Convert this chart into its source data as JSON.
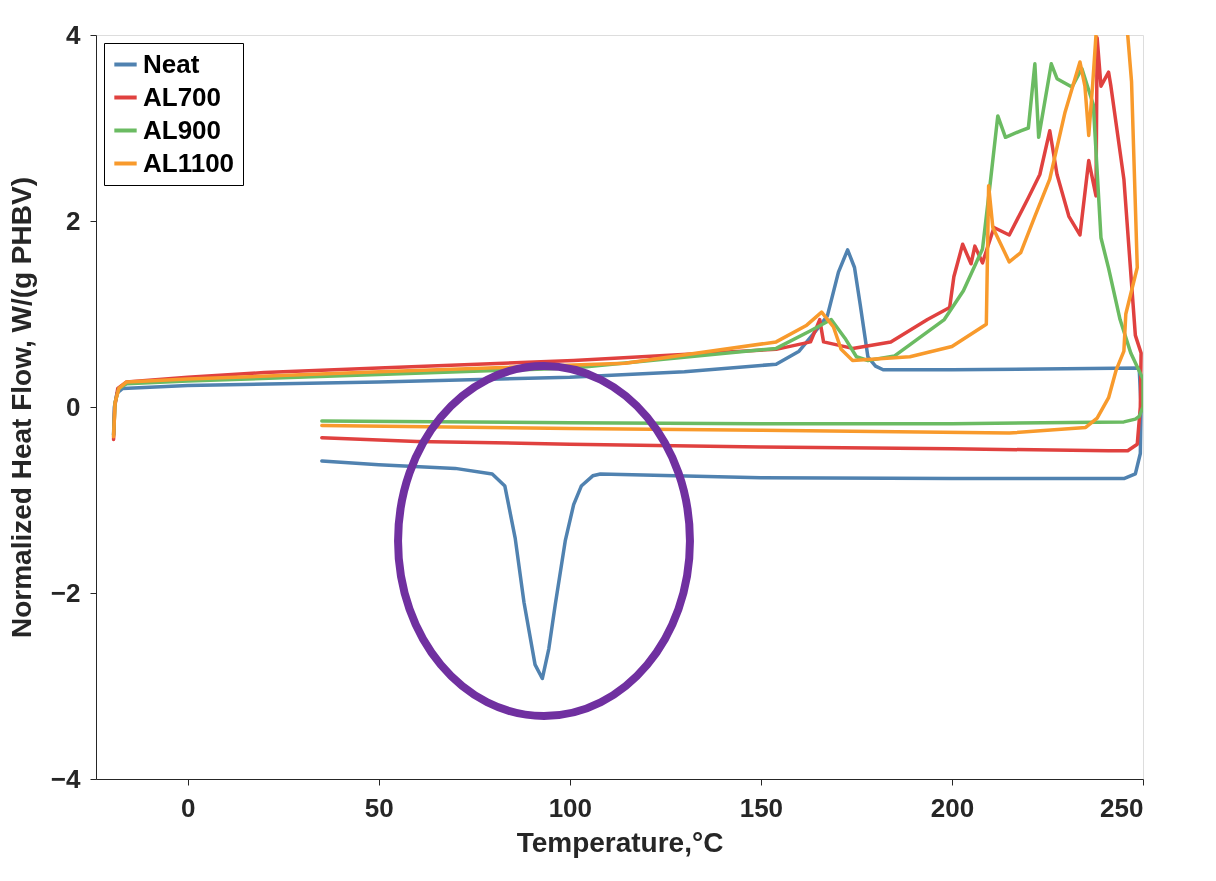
{
  "chart_data": {
    "type": "line",
    "xlabel": "Temperature,°C",
    "ylabel": "Normalized Heat Flow, W/(g PHBV)",
    "xlim": [
      -24,
      250
    ],
    "xticks": [
      0,
      50,
      100,
      150,
      200,
      250
    ],
    "ylim": [
      -4,
      4
    ],
    "yticks": [
      -4,
      -2,
      0,
      2,
      4
    ],
    "grid": false,
    "legend": "top left",
    "marker": "none",
    "line_style": "solid",
    "series": [
      {
        "name": "Neat",
        "color": "#5082b0",
        "x": [
          -19.4,
          -19.2,
          -18.5,
          -17,
          0,
          50,
          100,
          130,
          154,
          160,
          164,
          167.4,
          170.3,
          172.7,
          174.5,
          176,
          178,
          180,
          182,
          200,
          249,
          249.5,
          249.3,
          248,
          245,
          200,
          150,
          108,
          106,
          103,
          101,
          98.8,
          96.2,
          94.5,
          92.8,
          90.9,
          88,
          85.7,
          83,
          79.7,
          70,
          50,
          35.1
        ],
        "values": [
          -0.3,
          0.0,
          0.15,
          0.2,
          0.23,
          0.27,
          0.32,
          0.38,
          0.46,
          0.6,
          0.8,
          0.98,
          1.45,
          1.69,
          1.5,
          1.1,
          0.54,
          0.44,
          0.4,
          0.4,
          0.42,
          0.0,
          -0.5,
          -0.72,
          -0.77,
          -0.77,
          -0.76,
          -0.72,
          -0.74,
          -0.85,
          -1.05,
          -1.44,
          -2.12,
          -2.6,
          -2.92,
          -2.77,
          -2.1,
          -1.41,
          -0.85,
          -0.72,
          -0.66,
          -0.62,
          -0.58
        ]
      },
      {
        "name": "AL700",
        "color": "#e0413f",
        "x": [
          -19.4,
          -19.1,
          -18.3,
          -16,
          0,
          20,
          50,
          101,
          154,
          163,
          165.4,
          166.4,
          174,
          184,
          193.6,
          199.4,
          200.5,
          202.8,
          205,
          206,
          208,
          211,
          215,
          220,
          223,
          225.6,
          227.5,
          230.6,
          233.5,
          235.8,
          237.7,
          238,
          239,
          241,
          241.6,
          245,
          248,
          249.5,
          249.3,
          248.5,
          246,
          241,
          200,
          150,
          100,
          60,
          35.1
        ],
        "values": [
          -0.35,
          0.0,
          0.2,
          0.27,
          0.32,
          0.37,
          0.42,
          0.5,
          0.62,
          0.7,
          0.94,
          0.7,
          0.63,
          0.7,
          0.94,
          1.07,
          1.4,
          1.75,
          1.54,
          1.73,
          1.55,
          1.93,
          1.85,
          2.25,
          2.5,
          2.97,
          2.5,
          2.05,
          1.85,
          2.65,
          2.27,
          3.97,
          3.45,
          3.6,
          3.45,
          2.45,
          0.77,
          0.58,
          0.0,
          -0.4,
          -0.47,
          -0.47,
          -0.45,
          -0.43,
          -0.4,
          -0.37,
          -0.33
        ]
      },
      {
        "name": "AL900",
        "color": "#6bbb62",
        "x": [
          -19.4,
          -19,
          -18,
          -16,
          0,
          50,
          101,
          154,
          163,
          168.4,
          172,
          175,
          178,
          185,
          198,
          203,
          208,
          210,
          212,
          214,
          218,
          220,
          221.7,
          222.7,
          226,
          227.5,
          231.4,
          234,
          237,
          239,
          241,
          244,
          246.8,
          250,
          250,
          249,
          248,
          245,
          200,
          150,
          100,
          35.1
        ],
        "values": [
          -0.3,
          0.05,
          0.2,
          0.25,
          0.28,
          0.35,
          0.42,
          0.63,
          0.82,
          0.94,
          0.74,
          0.54,
          0.5,
          0.55,
          0.94,
          1.25,
          1.7,
          2.4,
          3.13,
          2.9,
          2.97,
          3.0,
          3.69,
          2.9,
          3.69,
          3.53,
          3.44,
          3.64,
          3.25,
          1.82,
          1.49,
          0.94,
          0.58,
          0.3,
          0.0,
          -0.1,
          -0.13,
          -0.16,
          -0.18,
          -0.18,
          -0.17,
          -0.15
        ]
      },
      {
        "name": "AL1100",
        "color": "#f89a2c",
        "x": [
          -19.4,
          -19,
          -18,
          -16,
          0,
          50,
          114.5,
          154,
          162,
          165.9,
          169,
          171,
          174,
          189,
          200,
          209,
          209.6,
          210.7,
          215,
          218,
          221.7,
          225.6,
          229.6,
          233.5,
          234.8,
          235.8,
          236.8,
          237.7,
          242,
          246,
          247,
          248.5,
          245.5,
          245,
          243,
          241,
          238,
          235,
          215,
          150,
          100,
          35.1
        ],
        "values": [
          -0.32,
          0.05,
          0.2,
          0.27,
          0.3,
          0.38,
          0.47,
          0.7,
          0.88,
          1.02,
          0.86,
          0.62,
          0.5,
          0.54,
          0.65,
          0.89,
          2.38,
          1.93,
          1.56,
          1.66,
          2.05,
          2.45,
          3.17,
          3.71,
          3.45,
          2.92,
          3.45,
          4.0,
          null,
          4.0,
          3.5,
          1.5,
          1.0,
          0.6,
          0.4,
          0.1,
          -0.12,
          -0.22,
          -0.28,
          -0.25,
          -0.23,
          -0.2
        ]
      }
    ]
  }
}
